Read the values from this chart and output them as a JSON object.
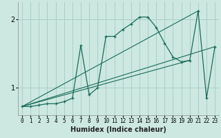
{
  "xlabel": "Humidex (Indice chaleur)",
  "bg_color": "#cce8e0",
  "grid_color": "#aacfc8",
  "line_color": "#1a6b5a",
  "xlim": [
    -0.5,
    23.5
  ],
  "ylim": [
    0.6,
    2.25
  ],
  "yticks": [
    1,
    2
  ],
  "xticks": [
    0,
    1,
    2,
    3,
    4,
    5,
    6,
    7,
    8,
    9,
    10,
    11,
    12,
    13,
    14,
    15,
    16,
    17,
    18,
    19,
    20,
    21,
    22,
    23
  ],
  "curve1_x": [
    0,
    1,
    2,
    3,
    4,
    5,
    6,
    7,
    8,
    9,
    10,
    11,
    12,
    13,
    14,
    15,
    16,
    17,
    18,
    19,
    20,
    21,
    22,
    23
  ],
  "curve1_y": [
    0.73,
    0.73,
    0.75,
    0.77,
    0.77,
    0.8,
    0.85,
    1.62,
    0.9,
    1.0,
    1.75,
    1.75,
    1.85,
    1.93,
    2.03,
    2.03,
    1.88,
    1.65,
    1.45,
    1.38,
    1.4,
    2.12,
    0.85,
    1.6
  ],
  "line1_x": [
    0,
    23
  ],
  "line1_y": [
    0.73,
    1.6
  ],
  "line2_x": [
    0,
    21
  ],
  "line2_y": [
    0.73,
    2.12
  ],
  "line3_x": [
    0,
    20
  ],
  "line3_y": [
    0.73,
    1.4
  ]
}
